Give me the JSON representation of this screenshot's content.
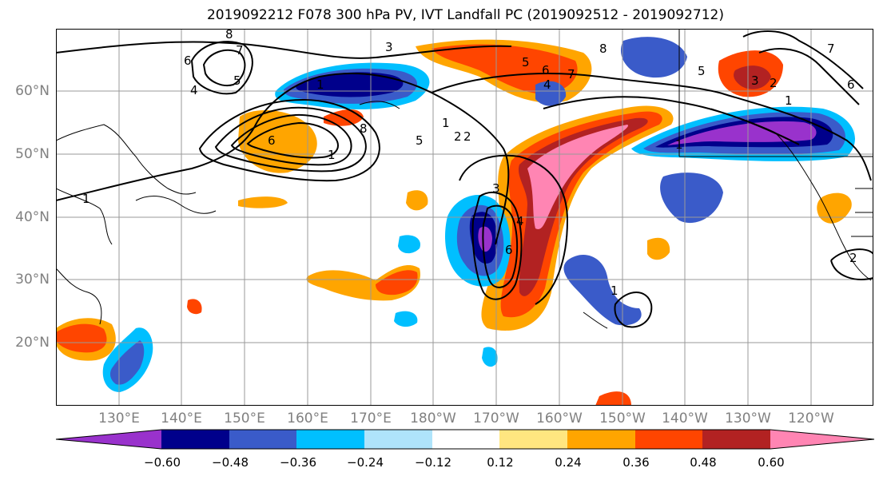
{
  "title": "2019092212 F078 300 hPa PV, IVT Landfall PC (2019092512 - 2019092712)",
  "lat_labels": [
    "60°N",
    "50°N",
    "40°N",
    "30°N",
    "20°N"
  ],
  "lon_labels": [
    "130°E",
    "140°E",
    "150°E",
    "160°E",
    "170°E",
    "180°W",
    "170°W",
    "160°W",
    "150°W",
    "140°W",
    "130°W",
    "120°W"
  ],
  "colorbar": {
    "ticks": [
      "−0.60",
      "−0.48",
      "−0.36",
      "−0.24",
      "−0.12",
      "0.12",
      "0.24",
      "0.36",
      "0.48",
      "0.60"
    ],
    "colors": [
      "#9932CC",
      "#00008B",
      "#3A5BC9",
      "#00BFFF",
      "#AFE4FB",
      "#FFFFFF",
      "#FFE680",
      "#FFA500",
      "#FF4500",
      "#B22222",
      "#FF85B3"
    ]
  },
  "contour_labels": [
    "8",
    "7",
    "6",
    "5",
    "4",
    "3",
    "1",
    "2",
    "1",
    "8",
    "6",
    "6",
    "1",
    "3",
    "4",
    "5",
    "6",
    "7",
    "5",
    "4",
    "3",
    "2",
    "1",
    "2",
    "1",
    "1",
    "7",
    "6",
    "8",
    "5",
    "2",
    "1"
  ],
  "legend_colors": {
    "neg_extreme": "#9932CC",
    "neg_strong": "#00008B",
    "neg_mid": "#3A5BC9",
    "neg_weak": "#00BFFF",
    "neg_faint": "#AFE4FB",
    "pos_faint": "#FFE680",
    "pos_weak": "#FFA500",
    "pos_mid": "#FF4500",
    "pos_strong": "#B22222",
    "pos_extreme": "#FF85B3"
  }
}
